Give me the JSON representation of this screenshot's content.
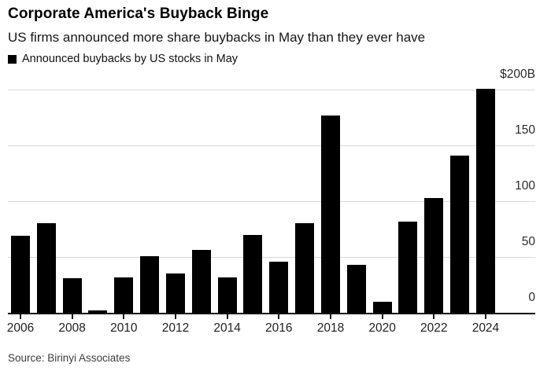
{
  "chart_data": {
    "type": "bar",
    "title": "Corporate America's Buyback Binge",
    "subtitle": "US firms announced more share buybacks in May than they ever have",
    "legend": "Announced buybacks by US stocks in May",
    "unit": "billions of US dollars",
    "categories": [
      "2006",
      "2007",
      "2008",
      "2009",
      "2010",
      "2011",
      "2012",
      "2013",
      "2014",
      "2015",
      "2016",
      "2017",
      "2018",
      "2019",
      "2020",
      "2021",
      "2022",
      "2023",
      "2024"
    ],
    "values": [
      69,
      80,
      31,
      2,
      32,
      51,
      35,
      56,
      32,
      70,
      46,
      80,
      177,
      43,
      10,
      82,
      103,
      141,
      201
    ],
    "ylim": [
      0,
      210
    ],
    "yticks": [
      {
        "value": 0,
        "label": "0"
      },
      {
        "value": 50,
        "label": "50"
      },
      {
        "value": 100,
        "label": "100"
      },
      {
        "value": 150,
        "label": "150"
      },
      {
        "value": 200,
        "label": "$200B"
      }
    ],
    "xtick_every": 2,
    "grid": "horizontal",
    "legend_position": "top-left",
    "bar_color": "#000000",
    "gridline_color": "#d8d8d8"
  },
  "source": {
    "text": "Source: Birinyi Associates"
  }
}
